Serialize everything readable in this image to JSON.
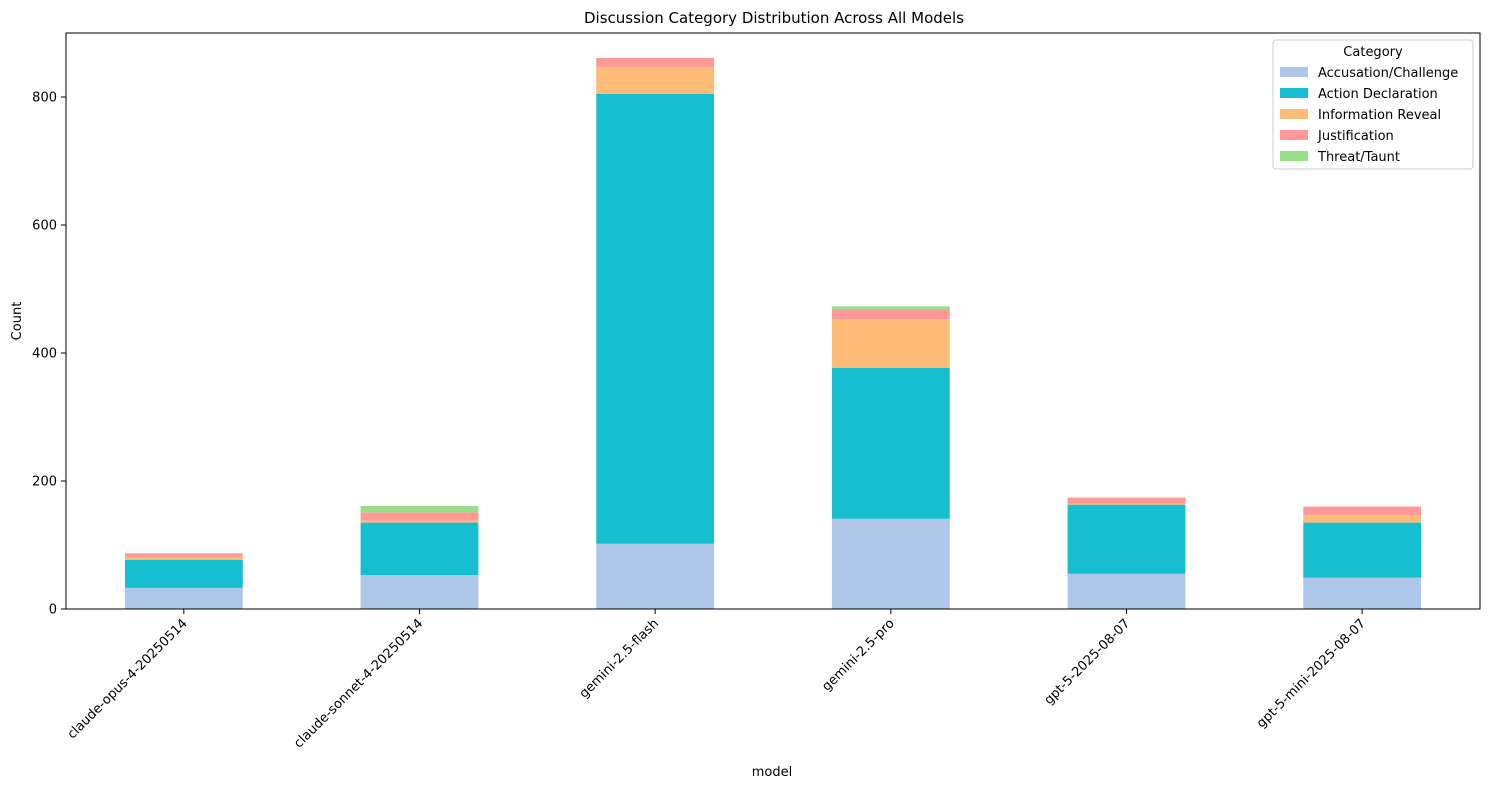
{
  "chart_data": {
    "type": "bar",
    "stacked": true,
    "title": "Discussion Category Distribution Across All Models",
    "xlabel": "model",
    "ylabel": "Count",
    "ylim": [
      0,
      900
    ],
    "yticks": [
      0,
      200,
      400,
      600,
      800
    ],
    "categories": [
      "claude-opus-4-20250514",
      "claude-sonnet-4-20250514",
      "gemini-2.5-flash",
      "gemini-2.5-pro",
      "gpt-5-2025-08-07",
      "gpt-5-mini-2025-08-07"
    ],
    "legend": {
      "title": "Category",
      "placement": "top-right"
    },
    "grid": false,
    "series": [
      {
        "name": "Accusation/Challenge",
        "color": "#aec7e8",
        "values": [
          33,
          53,
          102,
          141,
          55,
          49
        ]
      },
      {
        "name": "Action Declaration",
        "color": "#17becf",
        "values": [
          44,
          82,
          703,
          236,
          108,
          86
        ]
      },
      {
        "name": "Information Reveal",
        "color": "#ffbb78",
        "values": [
          4,
          3,
          42,
          76,
          2,
          12
        ]
      },
      {
        "name": "Justification",
        "color": "#ff9896",
        "values": [
          6,
          13,
          14,
          15,
          9,
          13
        ]
      },
      {
        "name": "Threat/Taunt",
        "color": "#98df8a",
        "values": [
          0,
          10,
          0,
          5,
          0,
          0
        ]
      }
    ]
  }
}
